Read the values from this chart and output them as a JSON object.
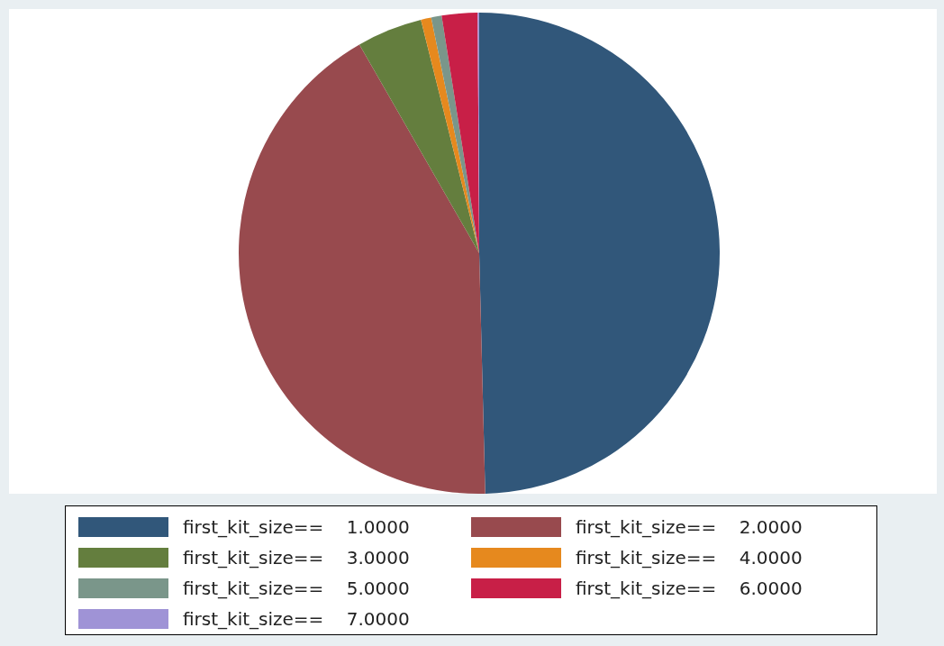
{
  "chart_data": {
    "type": "pie",
    "categories": [
      "first_kit_size==    1.0000",
      "first_kit_size==    2.0000",
      "first_kit_size==    3.0000",
      "first_kit_size==    4.0000",
      "first_kit_size==    5.0000",
      "first_kit_size==    6.0000",
      "first_kit_size==    7.0000"
    ],
    "values": [
      49.6,
      42.1,
      4.4,
      0.7,
      0.7,
      2.4,
      0.1
    ],
    "colors": [
      "#31577a",
      "#984a4e",
      "#647e3e",
      "#e6891e",
      "#7a968a",
      "#c81f47",
      "#9f93d6"
    ],
    "legend": "bottom"
  }
}
